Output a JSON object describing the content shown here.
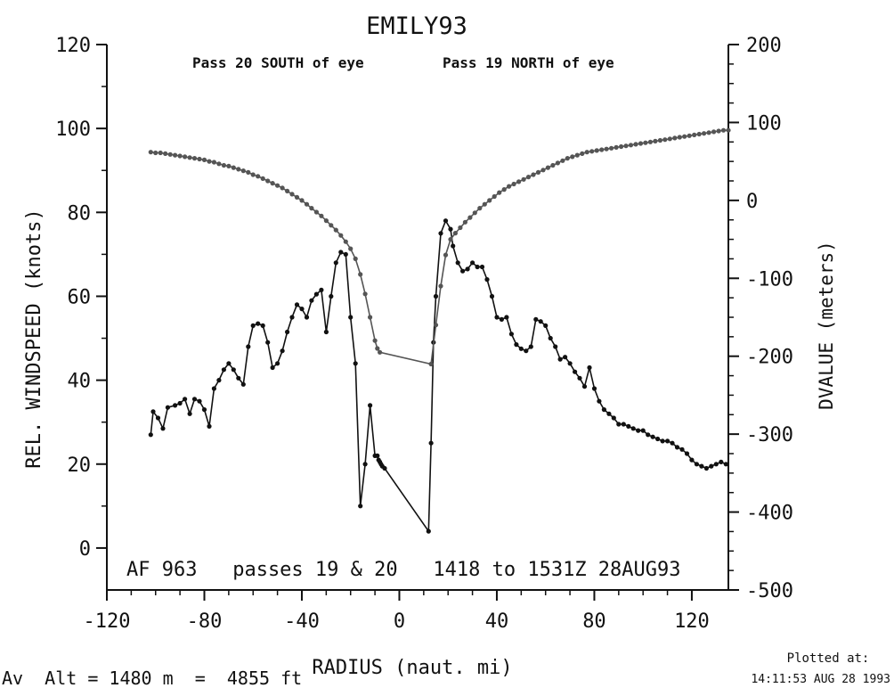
{
  "chart_data": {
    "type": "line",
    "title": "EMILY93",
    "subtitle_left": "Pass 20 SOUTH of eye",
    "subtitle_right": "Pass 19 NORTH of eye",
    "xlabel": "RADIUS (naut. mi)",
    "ylabel_left": "REL. WINDSPEED (knots)",
    "ylabel_right": "DVALUE (meters)",
    "xlim": [
      -120,
      135
    ],
    "ylim_left": [
      -10,
      120
    ],
    "ylim_right": [
      -500,
      200
    ],
    "x_ticks": [
      -120,
      -80,
      -40,
      0,
      40,
      80,
      120
    ],
    "y_left_ticks": [
      0,
      20,
      40,
      60,
      80,
      100,
      120
    ],
    "y_right_ticks": [
      -500,
      -400,
      -300,
      -200,
      -100,
      0,
      100,
      200
    ],
    "grid": false,
    "annotation": "AF 963   passes 19 & 20   1418 to 1531Z 28AUG93",
    "series": [
      {
        "axis": "left",
        "color": "#111111",
        "x": [
          -102,
          -101,
          -99,
          -97,
          -95,
          -92,
          -90,
          -88,
          -86,
          -84,
          -82,
          -80,
          -78,
          -76,
          -74,
          -72,
          -70,
          -68,
          -66,
          -64,
          -62,
          -60,
          -58,
          -56,
          -54,
          -52,
          -50,
          -48,
          -46,
          -44,
          -42,
          -40,
          -38,
          -36,
          -34,
          -32,
          -30,
          -28,
          -26,
          -24,
          -22,
          -20,
          -18,
          -16,
          -14,
          -12,
          -10,
          -9,
          -8.5,
          -8,
          -7.5,
          -7,
          -6,
          12,
          13,
          14,
          15,
          17,
          19,
          21,
          22,
          24,
          26,
          28,
          30,
          32,
          34,
          36,
          38,
          40,
          42,
          44,
          46,
          48,
          50,
          52,
          54,
          56,
          58,
          60,
          62,
          64,
          66,
          68,
          70,
          72,
          74,
          76,
          78,
          80,
          82,
          84,
          86,
          88,
          90,
          92,
          94,
          96,
          98,
          100,
          102,
          104,
          106,
          108,
          110,
          112,
          114,
          116,
          118,
          120,
          122,
          124,
          126,
          128,
          130,
          132,
          134
        ],
        "y": [
          27,
          32.5,
          31,
          28.5,
          33.5,
          34,
          34.5,
          35.5,
          32,
          35.5,
          35,
          33,
          29,
          38,
          40,
          42.5,
          44,
          42.5,
          40.5,
          39,
          48,
          53,
          53.5,
          53,
          49,
          43,
          44,
          47,
          51.5,
          55,
          58,
          57,
          55,
          59,
          60.5,
          61.5,
          51.5,
          60,
          68,
          70.5,
          70,
          55,
          44,
          10,
          20,
          34,
          22,
          22,
          21,
          20.5,
          20,
          19.5,
          19,
          4,
          25,
          49,
          60,
          75,
          78,
          76,
          72,
          68,
          66,
          66.5,
          68,
          67,
          67,
          64,
          60,
          55,
          54.5,
          55,
          51,
          48.5,
          47.5,
          47,
          48,
          54.5,
          54,
          53,
          50,
          48,
          45,
          45.5,
          44,
          42,
          40.5,
          38.5,
          43,
          38,
          35,
          33,
          32,
          31,
          29.5,
          29.5,
          29,
          28.5,
          28,
          28,
          27,
          26.5,
          26,
          25.5,
          25.5,
          25,
          24,
          23.5,
          22.5,
          21,
          20,
          19.5,
          19,
          19.5,
          20,
          20.5,
          20
        ]
      },
      {
        "axis": "right",
        "color": "#555555",
        "x": [
          -102,
          -100,
          -98,
          -96,
          -94,
          -92,
          -90,
          -88,
          -86,
          -84,
          -82,
          -80,
          -78,
          -76,
          -74,
          -72,
          -70,
          -68,
          -66,
          -64,
          -62,
          -60,
          -58,
          -56,
          -54,
          -52,
          -50,
          -48,
          -46,
          -44,
          -42,
          -40,
          -38,
          -36,
          -34,
          -32,
          -30,
          -28,
          -26,
          -24,
          -22,
          -20,
          -18,
          -16,
          -14,
          -12,
          -10,
          -9,
          -8,
          13,
          15,
          17,
          19,
          21,
          23,
          25,
          27,
          29,
          31,
          33,
          35,
          37,
          39,
          41,
          43,
          45,
          47,
          49,
          51,
          53,
          55,
          57,
          59,
          61,
          63,
          65,
          67,
          69,
          71,
          73,
          75,
          77,
          79,
          81,
          83,
          85,
          87,
          89,
          91,
          93,
          95,
          97,
          99,
          101,
          103,
          105,
          107,
          109,
          111,
          113,
          115,
          117,
          119,
          121,
          123,
          125,
          127,
          129,
          131,
          133,
          135
        ],
        "y": [
          62,
          61,
          61,
          60,
          59,
          58,
          57,
          56,
          55,
          54,
          53,
          52,
          50,
          49,
          47,
          45,
          44,
          42,
          40,
          38,
          36,
          33,
          31,
          28,
          25,
          22,
          19,
          16,
          12,
          8,
          4,
          0,
          -5,
          -10,
          -15,
          -20,
          -26,
          -32,
          -38,
          -45,
          -53,
          -62,
          -75,
          -95,
          -120,
          -150,
          -180,
          -190,
          -195,
          -210,
          -160,
          -110,
          -70,
          -50,
          -42,
          -35,
          -28,
          -22,
          -16,
          -10,
          -5,
          0,
          5,
          10,
          14,
          18,
          21,
          24,
          27,
          30,
          33,
          36,
          39,
          42,
          45,
          48,
          51,
          54,
          56,
          58,
          60,
          62,
          63,
          64,
          65,
          66,
          67,
          68,
          69,
          70,
          71,
          72,
          73,
          74,
          75,
          76,
          77,
          78,
          79,
          80,
          81,
          82,
          83,
          84,
          85,
          86,
          87,
          88,
          89,
          90,
          90
        ]
      }
    ]
  },
  "footer": {
    "avg_alt": "Av  Alt = 1480 m  =  4855 ft",
    "plotted_at_label": "Plotted at:",
    "plotted_at_time": "14:11:53 AUG 28 1993"
  }
}
